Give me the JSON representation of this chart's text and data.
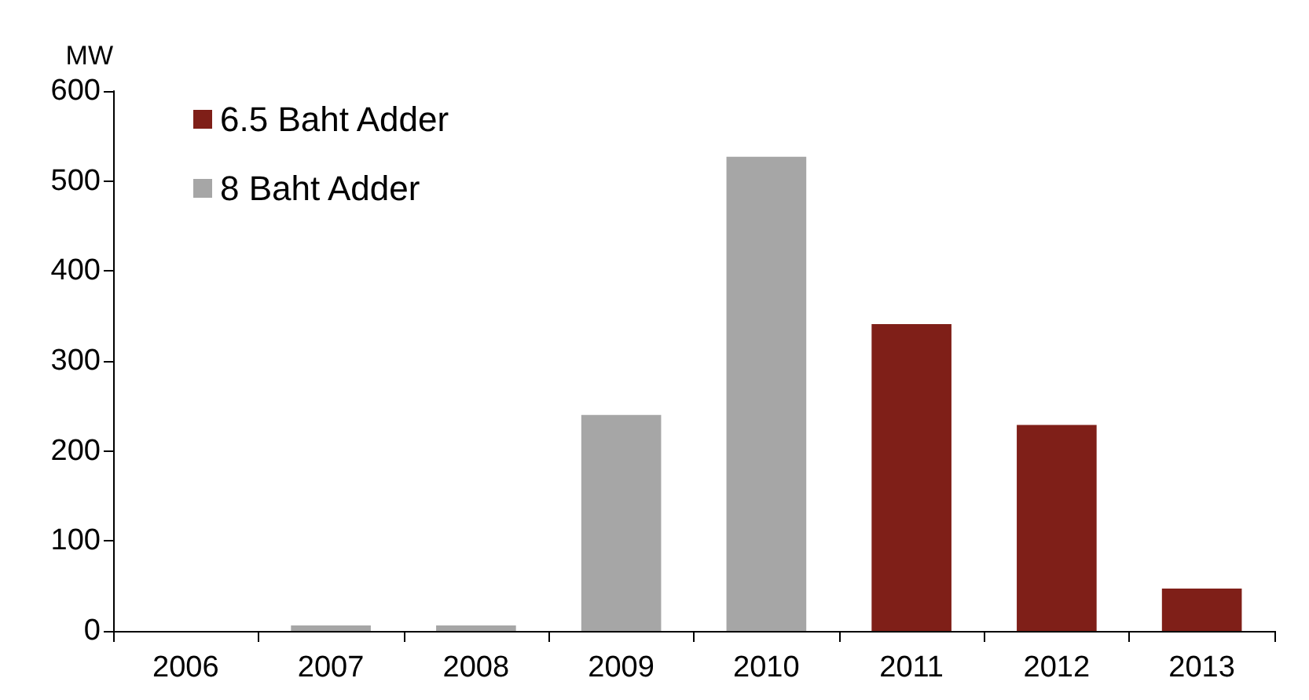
{
  "chart_data": {
    "type": "bar",
    "ylabel": "MW",
    "categories": [
      "2006",
      "2007",
      "2008",
      "2009",
      "2010",
      "2011",
      "2012",
      "2013"
    ],
    "series": [
      {
        "name": "6.5 Baht Adder",
        "color": "#7f1f18",
        "values": [
          null,
          null,
          null,
          null,
          null,
          341,
          229,
          47
        ]
      },
      {
        "name": "8 Baht Adder",
        "color": "#a6a6a6",
        "values": [
          null,
          6,
          6,
          240,
          527,
          null,
          null,
          null
        ]
      }
    ],
    "stacked": true,
    "ylim": [
      0,
      600
    ],
    "yticks": [
      0,
      100,
      200,
      300,
      400,
      500,
      600
    ],
    "grid": false,
    "legend": "top left"
  }
}
